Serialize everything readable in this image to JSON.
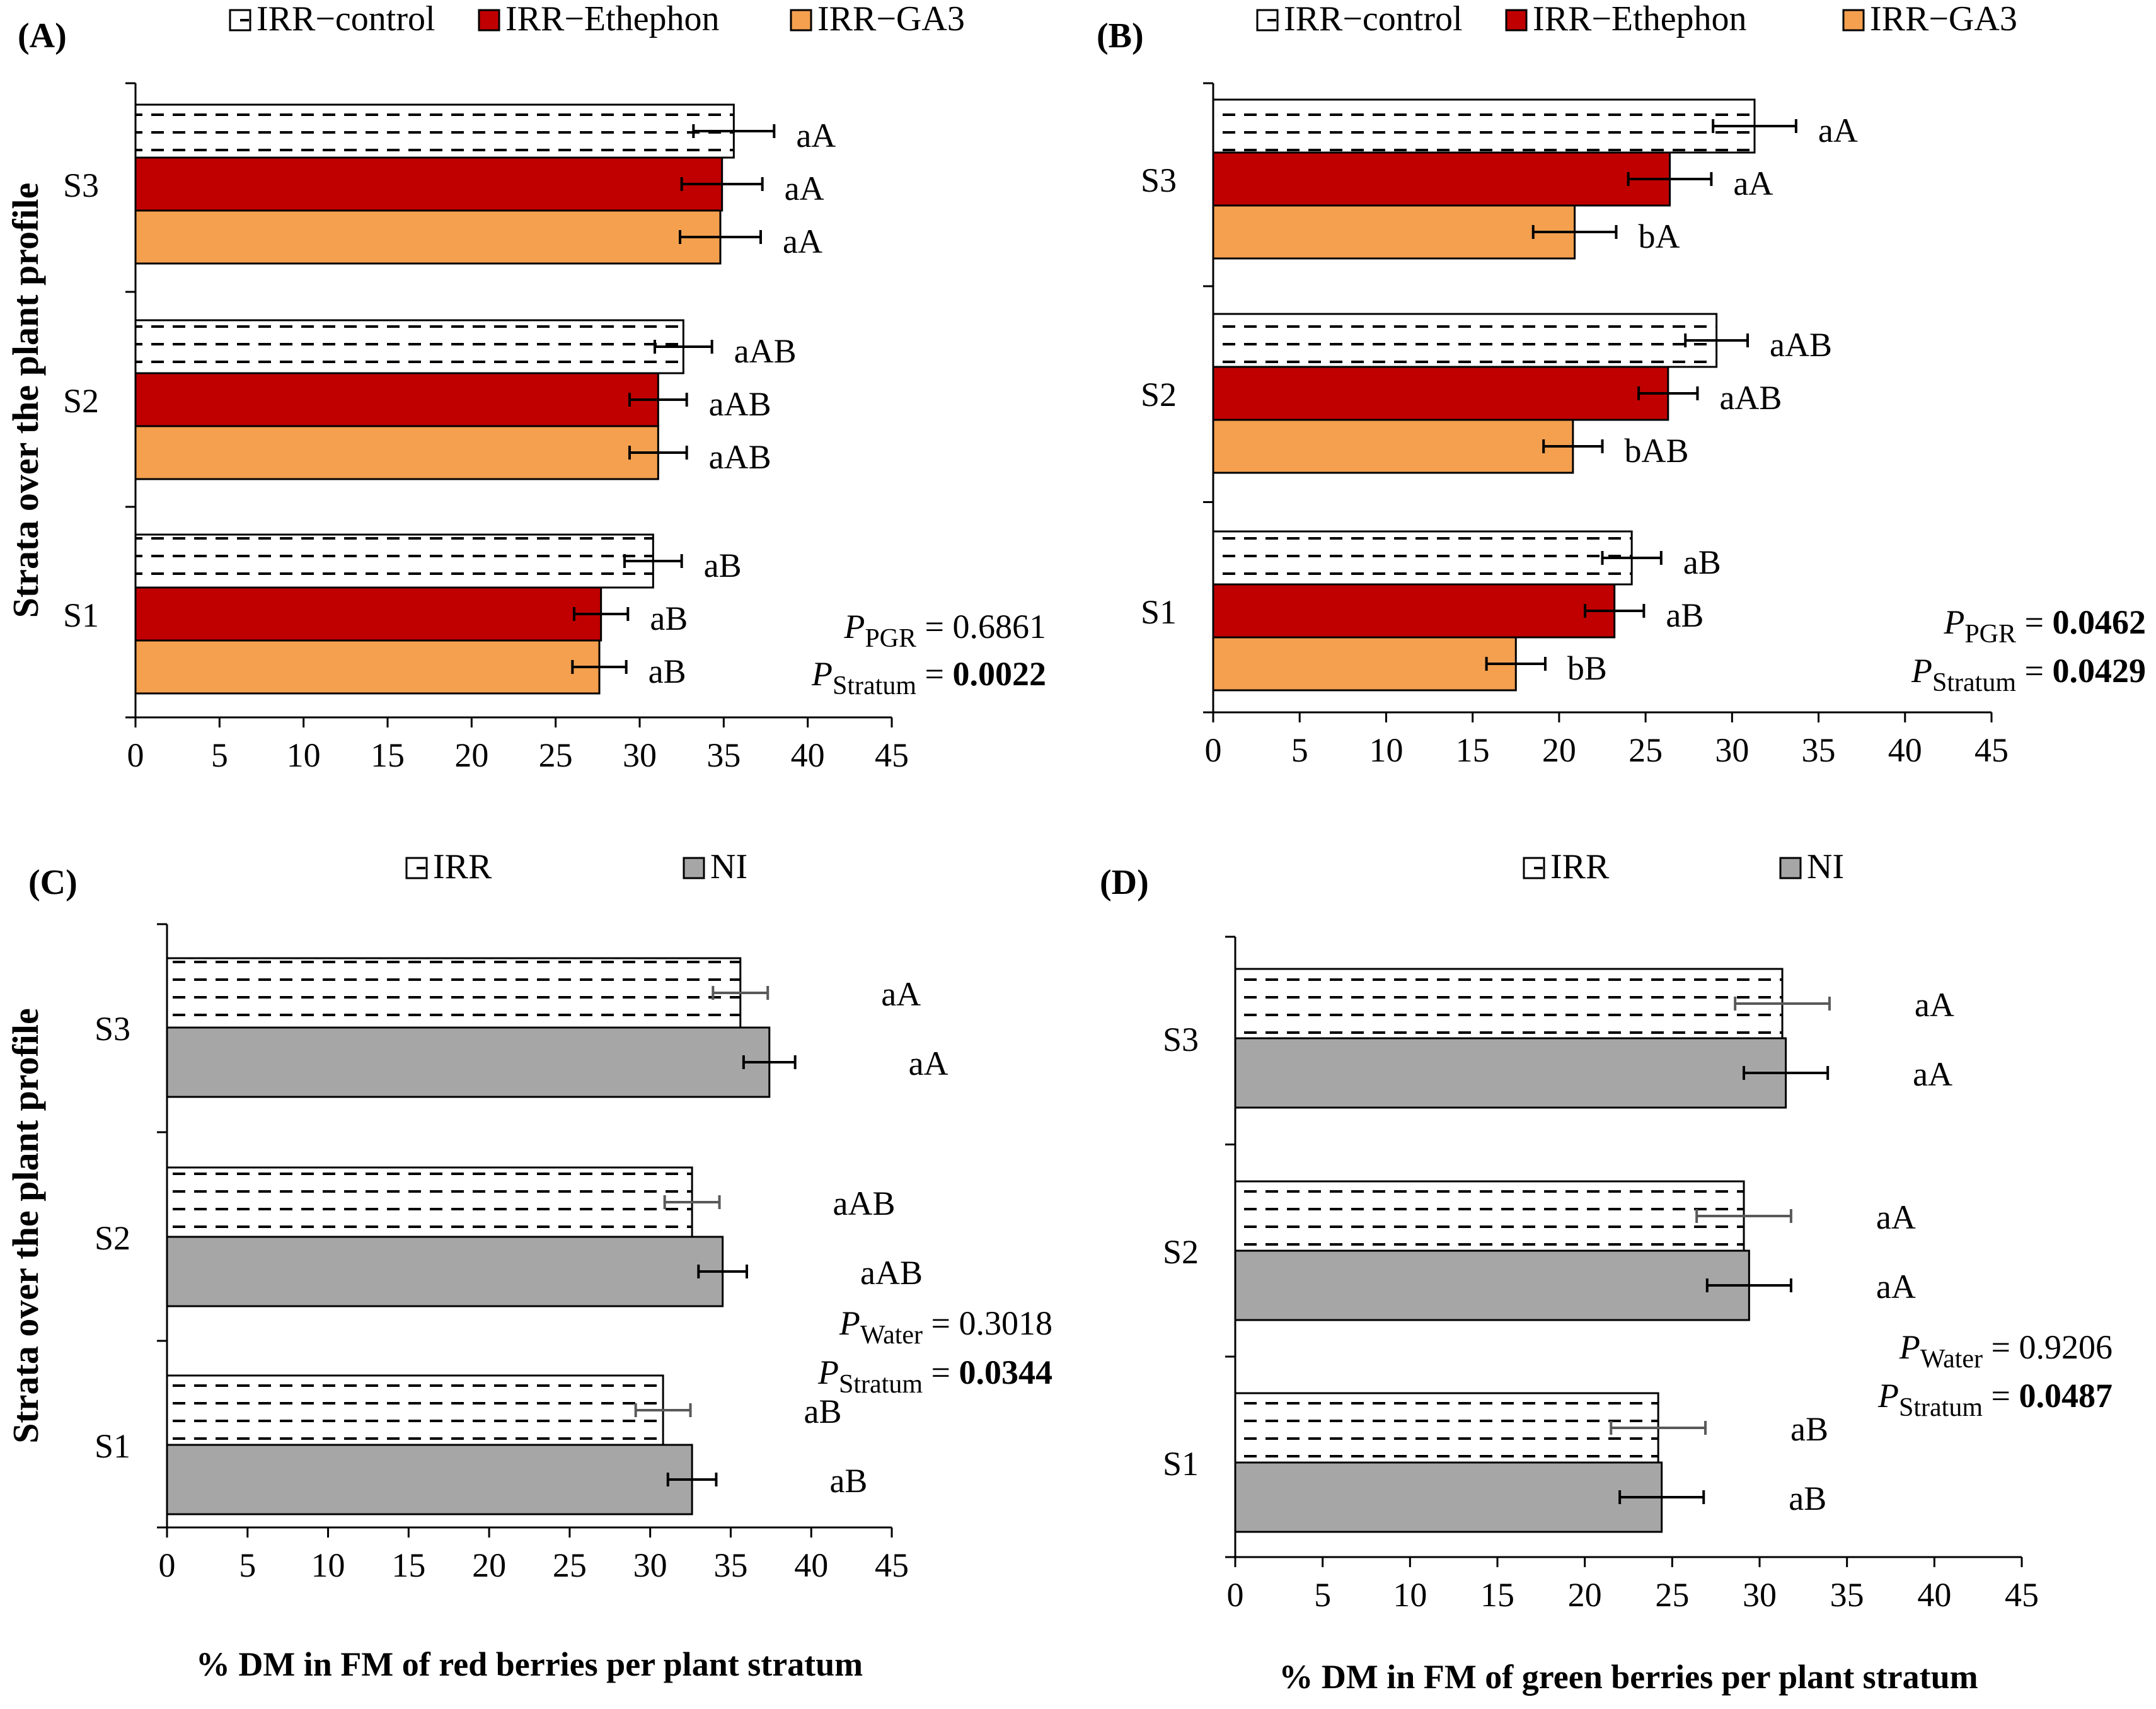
{
  "figure": {
    "y_axis_title": "Strata over the plant profile",
    "colors": {
      "irr": "#ffffff",
      "ethephon": "#c00000",
      "ga3": "#f4a04f",
      "ni": "#a6a6a6",
      "axis": "#000000",
      "error_gray": "#595959"
    }
  },
  "chart_data": [
    {
      "panel": "(A)",
      "type": "bar",
      "orientation": "horizontal",
      "categories": [
        "S1",
        "S2",
        "S3"
      ],
      "series": [
        {
          "name": "IRR−control",
          "key": "irr",
          "pattern": "dashed",
          "values": [
            30.8,
            32.6,
            35.6
          ],
          "errors": [
            1.7,
            1.7,
            2.4
          ],
          "labels": [
            "aB",
            "aAB",
            "aA"
          ]
        },
        {
          "name": "IRR−Ethephon",
          "key": "ethephon",
          "pattern": "solid",
          "values": [
            27.7,
            31.1,
            34.9
          ],
          "errors": [
            1.6,
            1.7,
            2.4
          ],
          "labels": [
            "aB",
            "aAB",
            "aA"
          ]
        },
        {
          "name": "IRR−GA3",
          "key": "ga3",
          "pattern": "solid",
          "values": [
            27.6,
            31.1,
            34.8
          ],
          "errors": [
            1.6,
            1.7,
            2.4
          ],
          "labels": [
            "aB",
            "aAB",
            "aA"
          ]
        }
      ],
      "xlim": [
        0,
        45
      ],
      "xticks": [
        "0",
        "5",
        "10",
        "15",
        "20",
        "25",
        "30",
        "35",
        "40",
        "45"
      ],
      "xlabel": "",
      "ylabel": "Strata over the plant profile",
      "stats": [
        {
          "p": "P",
          "sub": "PGR",
          "eq": " = ",
          "value": "0.6861",
          "bold": false
        },
        {
          "p": "P",
          "sub": "Stratum",
          "eq": " = ",
          "value": "0.0022",
          "bold": true
        }
      ]
    },
    {
      "panel": "(B)",
      "type": "bar",
      "orientation": "horizontal",
      "categories": [
        "S1",
        "S2",
        "S3"
      ],
      "series": [
        {
          "name": "IRR−control",
          "key": "irr",
          "pattern": "dashed",
          "values": [
            24.2,
            29.1,
            31.3
          ],
          "errors": [
            1.7,
            1.8,
            2.4
          ],
          "labels": [
            "aB",
            "aAB",
            "aA"
          ]
        },
        {
          "name": "IRR−Ethephon",
          "key": "ethephon",
          "pattern": "solid",
          "values": [
            23.2,
            26.3,
            26.4
          ],
          "errors": [
            1.7,
            1.7,
            2.4
          ],
          "labels": [
            "aB",
            "aAB",
            "aA"
          ]
        },
        {
          "name": "IRR−GA3",
          "key": "ga3",
          "pattern": "solid",
          "values": [
            17.5,
            20.8,
            20.9
          ],
          "errors": [
            1.7,
            1.7,
            2.4
          ],
          "labels": [
            "bB",
            "bAB",
            "bA"
          ]
        }
      ],
      "xlim": [
        0,
        45
      ],
      "xticks": [
        "0",
        "5",
        "10",
        "15",
        "20",
        "25",
        "30",
        "35",
        "40",
        "45"
      ],
      "xlabel": "",
      "ylabel": "",
      "stats": [
        {
          "p": "P",
          "sub": "PGR",
          "eq": " = ",
          "value": "0.0462",
          "bold": true
        },
        {
          "p": "P",
          "sub": "Stratum",
          "eq": " = ",
          "value": "0.0429",
          "bold": true
        }
      ]
    },
    {
      "panel": "(C)",
      "type": "bar",
      "orientation": "horizontal",
      "categories": [
        "S1",
        "S2",
        "S3"
      ],
      "series": [
        {
          "name": "IRR",
          "key": "irr",
          "pattern": "dashed",
          "values": [
            30.8,
            32.6,
            35.6
          ],
          "errors": [
            1.7,
            1.7,
            1.7
          ],
          "labels": [
            "aB",
            "aAB",
            "aA"
          ]
        },
        {
          "name": "NI",
          "key": "ni",
          "pattern": "solid",
          "values": [
            32.6,
            34.5,
            37.4
          ],
          "errors": [
            1.5,
            1.5,
            1.6
          ],
          "labels": [
            "aB",
            "aAB",
            "aA"
          ]
        }
      ],
      "xlim": [
        0,
        45
      ],
      "xticks": [
        "0",
        "5",
        "10",
        "15",
        "20",
        "25",
        "30",
        "35",
        "40",
        "45"
      ],
      "xlabel": "% DM in FM of red berries per plant stratum",
      "ylabel": "Strata over the plant profile",
      "stats": [
        {
          "p": "P",
          "sub": "Water",
          "eq": " = ",
          "value": "0.3018",
          "bold": false
        },
        {
          "p": "P",
          "sub": "Stratum",
          "eq": " = ",
          "value": "0.0344",
          "bold": true
        }
      ]
    },
    {
      "panel": "(D)",
      "type": "bar",
      "orientation": "horizontal",
      "categories": [
        "S1",
        "S2",
        "S3"
      ],
      "series": [
        {
          "name": "IRR",
          "key": "irr",
          "pattern": "dashed",
          "values": [
            24.2,
            29.1,
            31.3
          ],
          "errors": [
            2.7,
            2.7,
            2.7
          ],
          "labels": [
            "aB",
            "aA",
            "aA"
          ]
        },
        {
          "name": "NI",
          "key": "ni",
          "pattern": "solid",
          "values": [
            24.4,
            29.4,
            31.5
          ],
          "errors": [
            2.4,
            2.4,
            2.4
          ],
          "labels": [
            "aB",
            "aA",
            "aA"
          ]
        }
      ],
      "xlim": [
        0,
        45
      ],
      "xticks": [
        "0",
        "5",
        "10",
        "15",
        "20",
        "25",
        "30",
        "35",
        "40",
        "45"
      ],
      "xlabel": "% DM in FM of green berries per plant stratum",
      "ylabel": "",
      "stats": [
        {
          "p": "P",
          "sub": "Water",
          "eq": " = ",
          "value": "0.9206",
          "bold": false
        },
        {
          "p": "P",
          "sub": "Stratum",
          "eq": " = ",
          "value": "0.0487",
          "bold": true
        }
      ]
    }
  ]
}
